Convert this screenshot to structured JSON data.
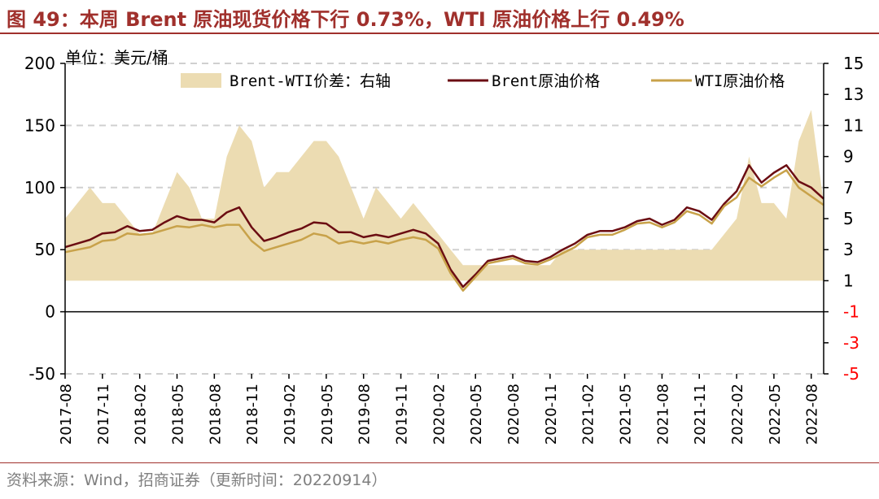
{
  "title": "图 49：本周 Brent 原油现货价格下行 0.73%，WTI 原油价格上行 0.49%",
  "source": "资料来源：Wind，招商证券（更新时间：20220914）",
  "colors": {
    "accent": "#a0302c",
    "spread_fill": "#ecdcb2",
    "brent_line": "#6b0d12",
    "wti_line": "#c8a24a",
    "gridline": "#d0d0d0",
    "negative_tick": "#ff0000"
  },
  "chart_data": {
    "type": "line",
    "unit_label": "单位：美元/桶",
    "x_tick_labels": [
      "2017-08",
      "2017-11",
      "2018-02",
      "2018-05",
      "2018-08",
      "2018-11",
      "2019-02",
      "2019-05",
      "2019-08",
      "2019-11",
      "2020-02",
      "2020-05",
      "2020-08",
      "2020-11",
      "2021-02",
      "2021-05",
      "2021-08",
      "2021-11",
      "2022-02",
      "2022-05",
      "2022-08"
    ],
    "x_range": [
      "2017-08",
      "2022-09"
    ],
    "y_left": {
      "range": [
        -50,
        200
      ],
      "ticks": [
        -50,
        0,
        50,
        100,
        150,
        200
      ]
    },
    "y_right": {
      "range": [
        -5,
        15
      ],
      "ticks": [
        -5,
        -3,
        -1,
        1,
        3,
        5,
        7,
        9,
        11,
        13,
        15
      ]
    },
    "grid": "horizontal dashed",
    "legend_position": "top",
    "legend": [
      "Brent-WTI价差：右轴",
      "Brent原油价格",
      "WTI原油价格"
    ],
    "series": [
      {
        "name": "Brent原油价格",
        "axis": "left",
        "x": [
          "2017-08",
          "2017-09",
          "2017-10",
          "2017-11",
          "2017-12",
          "2018-01",
          "2018-02",
          "2018-03",
          "2018-04",
          "2018-05",
          "2018-06",
          "2018-07",
          "2018-08",
          "2018-09",
          "2018-10",
          "2018-11",
          "2018-12",
          "2019-01",
          "2019-02",
          "2019-03",
          "2019-04",
          "2019-05",
          "2019-06",
          "2019-07",
          "2019-08",
          "2019-09",
          "2019-10",
          "2019-11",
          "2019-12",
          "2020-01",
          "2020-02",
          "2020-03",
          "2020-04",
          "2020-05",
          "2020-06",
          "2020-07",
          "2020-08",
          "2020-09",
          "2020-10",
          "2020-11",
          "2020-12",
          "2021-01",
          "2021-02",
          "2021-03",
          "2021-04",
          "2021-05",
          "2021-06",
          "2021-07",
          "2021-08",
          "2021-09",
          "2021-10",
          "2021-11",
          "2021-12",
          "2022-01",
          "2022-02",
          "2022-03",
          "2022-04",
          "2022-05",
          "2022-06",
          "2022-07",
          "2022-08",
          "2022-09"
        ],
        "values": [
          52,
          55,
          58,
          63,
          64,
          69,
          65,
          66,
          72,
          77,
          74,
          74,
          72,
          80,
          84,
          68,
          57,
          60,
          64,
          67,
          72,
          71,
          64,
          64,
          60,
          62,
          60,
          63,
          66,
          63,
          55,
          34,
          20,
          30,
          41,
          43,
          45,
          41,
          40,
          44,
          50,
          55,
          62,
          65,
          65,
          68,
          73,
          75,
          70,
          74,
          84,
          81,
          74,
          87,
          97,
          118,
          104,
          112,
          118,
          105,
          100,
          91
        ]
      },
      {
        "name": "WTI原油价格",
        "axis": "left",
        "x": [
          "2017-08",
          "2017-09",
          "2017-10",
          "2017-11",
          "2017-12",
          "2018-01",
          "2018-02",
          "2018-03",
          "2018-04",
          "2018-05",
          "2018-06",
          "2018-07",
          "2018-08",
          "2018-09",
          "2018-10",
          "2018-11",
          "2018-12",
          "2019-01",
          "2019-02",
          "2019-03",
          "2019-04",
          "2019-05",
          "2019-06",
          "2019-07",
          "2019-08",
          "2019-09",
          "2019-10",
          "2019-11",
          "2019-12",
          "2020-01",
          "2020-02",
          "2020-03",
          "2020-04",
          "2020-05",
          "2020-06",
          "2020-07",
          "2020-08",
          "2020-09",
          "2020-10",
          "2020-11",
          "2020-12",
          "2021-01",
          "2021-02",
          "2021-03",
          "2021-04",
          "2021-05",
          "2021-06",
          "2021-07",
          "2021-08",
          "2021-09",
          "2021-10",
          "2021-11",
          "2021-12",
          "2022-01",
          "2022-02",
          "2022-03",
          "2022-04",
          "2022-05",
          "2022-06",
          "2022-07",
          "2022-08",
          "2022-09"
        ],
        "values": [
          48,
          50,
          52,
          57,
          58,
          63,
          62,
          63,
          66,
          69,
          68,
          70,
          68,
          70,
          70,
          57,
          49,
          52,
          55,
          58,
          63,
          61,
          55,
          57,
          55,
          57,
          55,
          58,
          60,
          58,
          51,
          31,
          17,
          28,
          39,
          41,
          43,
          39,
          38,
          42,
          47,
          52,
          60,
          62,
          62,
          66,
          71,
          72,
          68,
          72,
          81,
          78,
          71,
          85,
          92,
          108,
          101,
          108,
          114,
          100,
          93,
          86
        ]
      },
      {
        "name": "Brent-WTI价差：右轴",
        "axis": "right",
        "type": "area",
        "x": [
          "2017-08",
          "2017-09",
          "2017-10",
          "2017-11",
          "2017-12",
          "2018-01",
          "2018-02",
          "2018-03",
          "2018-04",
          "2018-05",
          "2018-06",
          "2018-07",
          "2018-08",
          "2018-09",
          "2018-10",
          "2018-11",
          "2018-12",
          "2019-01",
          "2019-02",
          "2019-03",
          "2019-04",
          "2019-05",
          "2019-06",
          "2019-07",
          "2019-08",
          "2019-09",
          "2019-10",
          "2019-11",
          "2019-12",
          "2020-01",
          "2020-02",
          "2020-03",
          "2020-04",
          "2020-05",
          "2020-06",
          "2020-07",
          "2020-08",
          "2020-09",
          "2020-10",
          "2020-11",
          "2020-12",
          "2021-01",
          "2021-02",
          "2021-03",
          "2021-04",
          "2021-05",
          "2021-06",
          "2021-07",
          "2021-08",
          "2021-09",
          "2021-10",
          "2021-11",
          "2021-12",
          "2022-01",
          "2022-02",
          "2022-03",
          "2022-04",
          "2022-05",
          "2022-06",
          "2022-07",
          "2022-08",
          "2022-09"
        ],
        "values": [
          5,
          6,
          7,
          6,
          6,
          5,
          4,
          4,
          6,
          8,
          7,
          5,
          5,
          9,
          11,
          10,
          7,
          8,
          8,
          9,
          10,
          10,
          9,
          7,
          5,
          7,
          6,
          5,
          6,
          5,
          4,
          3,
          2,
          2,
          2,
          2,
          2,
          2,
          2,
          2,
          3,
          3,
          3,
          3,
          3,
          3,
          3,
          3,
          3,
          3,
          3,
          3,
          3,
          4,
          5,
          9,
          6,
          6,
          5,
          10,
          12,
          6
        ]
      }
    ]
  }
}
